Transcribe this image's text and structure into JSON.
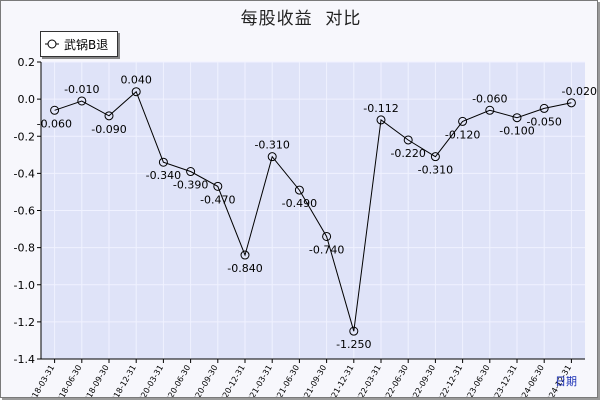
{
  "title": "每股收益  对比",
  "legend": {
    "label": "武锅B退"
  },
  "xaxis_title": "日期",
  "colors": {
    "plot_bg": "#dfe3f8",
    "grid": "#f0f2ff",
    "line": "#000000",
    "marker": "#000000"
  },
  "chart_data": {
    "type": "line",
    "title": "每股收益  对比",
    "xlabel": "日期",
    "ylabel": "",
    "ylim": [
      -1.4,
      0.2
    ],
    "yticks": [
      0.2,
      0.0,
      -0.2,
      -0.4,
      -0.6,
      -0.8,
      -1.0,
      -1.2,
      -1.4
    ],
    "grid": true,
    "legend_position": "top-left",
    "categories": [
      "2018-03-31",
      "2018-06-30",
      "2018-09-30",
      "2018-12-31",
      "2020-03-31",
      "2020-06-30",
      "2020-09-30",
      "2020-12-31",
      "2021-03-31",
      "2021-06-30",
      "2021-09-30",
      "2021-12-31",
      "2022-03-31",
      "2022-06-30",
      "2022-09-30",
      "2022-12-31",
      "2023-06-30",
      "2023-12-31",
      "2024-06-30",
      "2024-12-31"
    ],
    "series": [
      {
        "name": "武锅B退",
        "values": [
          -0.06,
          -0.01,
          -0.09,
          0.04,
          -0.34,
          -0.39,
          -0.47,
          -0.84,
          -0.31,
          -0.49,
          -0.74,
          -1.25,
          -0.112,
          -0.22,
          -0.31,
          -0.12,
          -0.06,
          -0.1,
          -0.05,
          -0.02
        ],
        "labels": [
          "-0.060",
          "-0.010",
          "-0.090",
          "0.040",
          "-0.340",
          "-0.390",
          "-0.470",
          "-0.840",
          "-0.310",
          "-0.490",
          "-0.740",
          "-1.250",
          "-0.112",
          "-0.220",
          "-0.310",
          "-0.120",
          "-0.060",
          "-0.100",
          "-0.050",
          "-0.020"
        ]
      }
    ]
  }
}
